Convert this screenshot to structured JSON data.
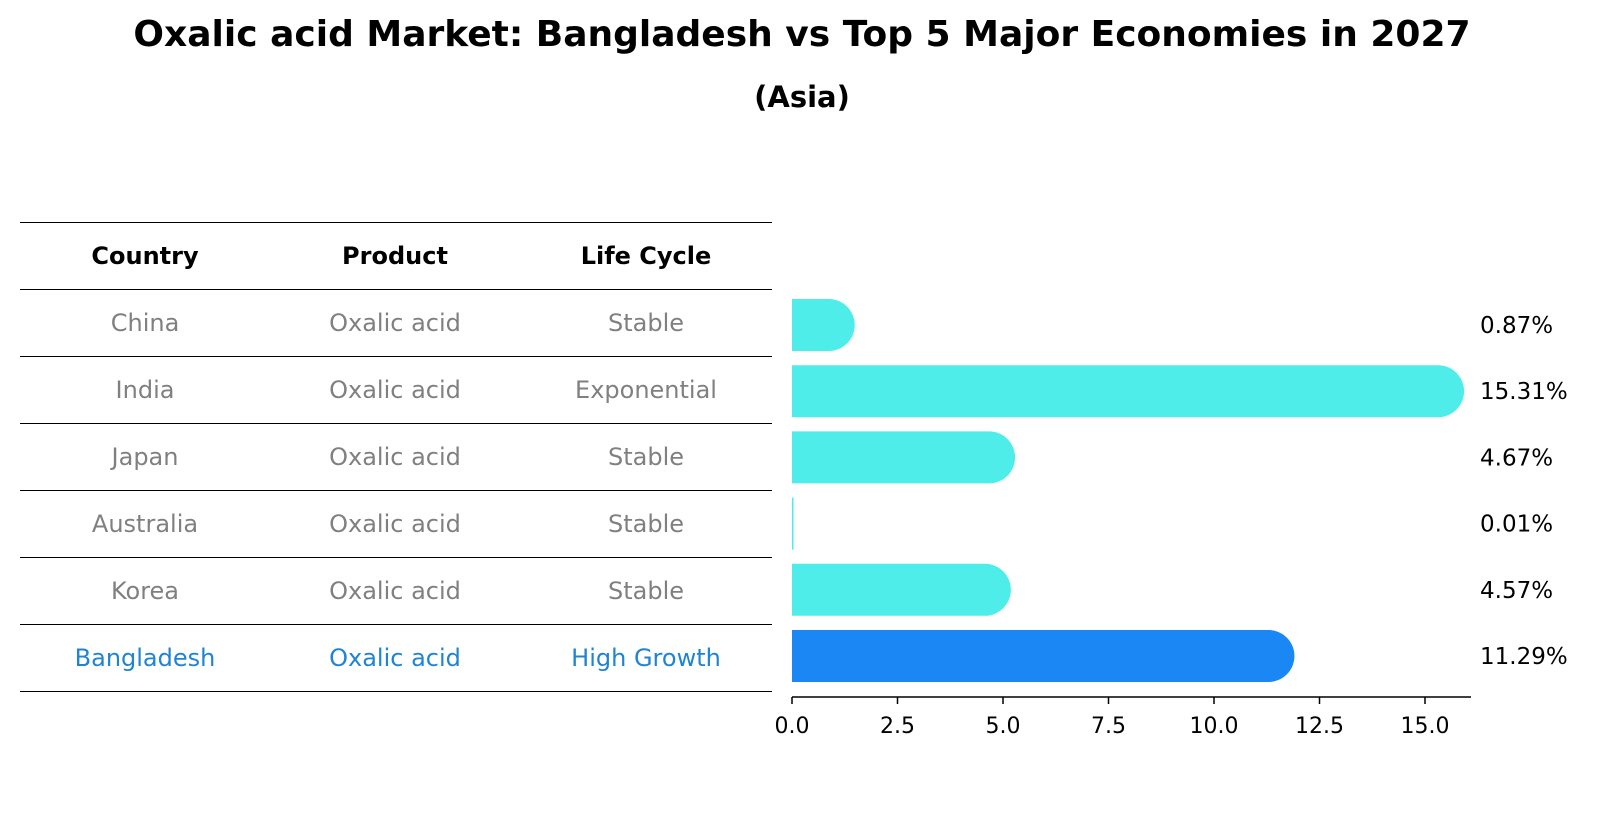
{
  "title": "Oxalic acid Market: Bangladesh vs Top 5 Major Economies in 2027",
  "subtitle": "(Asia)",
  "table": {
    "headers": [
      "Country",
      "Product",
      "Life Cycle"
    ],
    "rows": [
      {
        "country": "China",
        "product": "Oxalic acid",
        "life_cycle": "Stable"
      },
      {
        "country": "India",
        "product": "Oxalic acid",
        "life_cycle": "Exponential"
      },
      {
        "country": "Japan",
        "product": "Oxalic acid",
        "life_cycle": "Stable"
      },
      {
        "country": "Australia",
        "product": "Oxalic acid",
        "life_cycle": "Stable"
      },
      {
        "country": "Korea",
        "product": "Oxalic acid",
        "life_cycle": "Stable"
      },
      {
        "country": "Bangladesh",
        "product": "Oxalic acid",
        "life_cycle": "High Growth"
      }
    ]
  },
  "colors": {
    "bar": "#4eedea",
    "highlight_bar": "#1a87f4",
    "highlight_text": "#1f84d3",
    "muted_text": "#808080"
  },
  "chart_data": {
    "type": "bar",
    "orientation": "horizontal",
    "categories": [
      "China",
      "India",
      "Japan",
      "Australia",
      "Korea",
      "Bangladesh"
    ],
    "values": [
      0.87,
      15.31,
      4.67,
      0.01,
      4.57,
      11.29
    ],
    "value_labels": [
      "0.87%",
      "15.31%",
      "4.67%",
      "0.01%",
      "4.57%",
      "11.29%"
    ],
    "highlight_index": 5,
    "xlim": [
      0,
      16.1
    ],
    "xticks": [
      0.0,
      2.5,
      5.0,
      7.5,
      10.0,
      12.5,
      15.0
    ],
    "xtick_labels": [
      "0.0",
      "2.5",
      "5.0",
      "7.5",
      "10.0",
      "12.5",
      "15.0"
    ],
    "title": "Oxalic acid Market: Bangladesh vs Top 5 Major Economies in 2027",
    "xlabel": "",
    "ylabel": ""
  }
}
